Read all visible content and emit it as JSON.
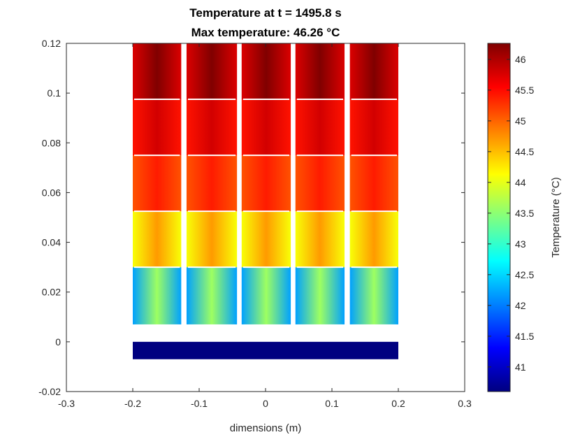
{
  "chart_data": {
    "type": "heatmap",
    "title": "Temperature at t = 1495.8 s",
    "subtitle": "Max temperature: 46.26 °C",
    "xlabel": "dimensions (m)",
    "ylabel": "",
    "xlim": [
      -0.3,
      0.3
    ],
    "ylim": [
      -0.02,
      0.12
    ],
    "x_ticks": [
      -0.3,
      -0.2,
      -0.1,
      0,
      0.1,
      0.2,
      0.3
    ],
    "x_tick_labels": [
      "-0.3",
      "-0.2",
      "-0.1",
      "0",
      "0.1",
      "0.2",
      "0.3"
    ],
    "y_ticks": [
      -0.02,
      0,
      0.02,
      0.04,
      0.06,
      0.08,
      0.1,
      0.12
    ],
    "y_tick_labels": [
      "-0.02",
      "0",
      "0.02",
      "0.04",
      "0.06",
      "0.08",
      "0.1",
      "0.12"
    ],
    "colormap": "jet",
    "colorbar": {
      "label": "Temperature (°C)",
      "range": [
        40.6,
        46.26
      ],
      "ticks": [
        41,
        41.5,
        42,
        42.5,
        43,
        43.5,
        44,
        44.5,
        45,
        45.5,
        46
      ],
      "tick_labels": [
        "41",
        "41.5",
        "42",
        "42.5",
        "43",
        "43.5",
        "44",
        "44.5",
        "45",
        "45.5",
        "46"
      ]
    },
    "base_plate": {
      "x": [
        -0.2,
        0.2
      ],
      "y": [
        -0.007,
        0.0
      ],
      "temperature": 40.6
    },
    "columns": [
      {
        "x": [
          -0.2,
          -0.127
        ]
      },
      {
        "x": [
          -0.119,
          -0.043
        ]
      },
      {
        "x": [
          -0.036,
          0.038
        ]
      },
      {
        "x": [
          0.045,
          0.119
        ]
      },
      {
        "x": [
          0.127,
          0.2
        ]
      }
    ],
    "insulation_gap": {
      "y": [
        0.002,
        0.007
      ]
    },
    "layers": [
      {
        "y": [
          0.007,
          0.03
        ],
        "center_temp": 43.6,
        "edge_temp": 42.2
      },
      {
        "y": [
          0.03,
          0.0525
        ],
        "center_temp": 44.7,
        "edge_temp": 44.1
      },
      {
        "y": [
          0.0525,
          0.075
        ],
        "center_temp": 45.4,
        "edge_temp": 45.1
      },
      {
        "y": [
          0.075,
          0.0975
        ],
        "center_temp": 45.8,
        "edge_temp": 45.45
      },
      {
        "y": [
          0.0975,
          0.12
        ],
        "center_temp": 46.26,
        "edge_temp": 45.75
      }
    ]
  }
}
